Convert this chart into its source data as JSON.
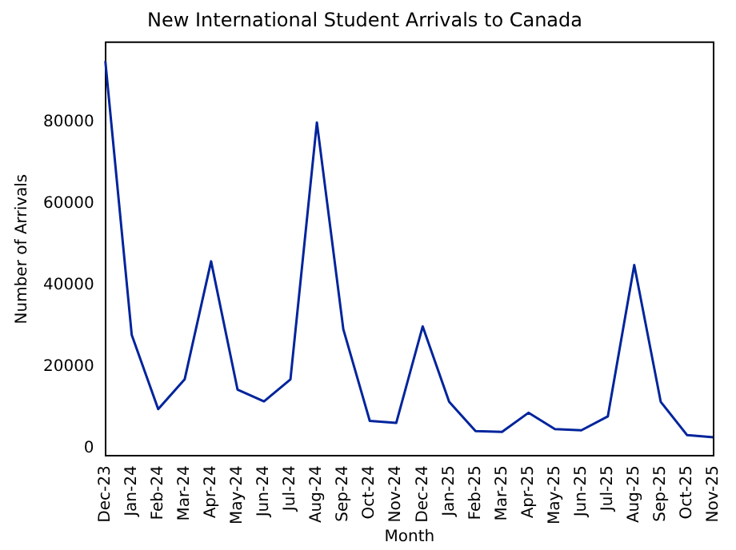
{
  "chart_data": {
    "type": "line",
    "title": "New International Student Arrivals to Canada",
    "xlabel": "Month",
    "ylabel": "Number of Arrivals",
    "categories": [
      "Dec-23",
      "Jan-24",
      "Feb-24",
      "Mar-24",
      "Apr-24",
      "May-24",
      "Jun-24",
      "Jul-24",
      "Aug-24",
      "Sep-24",
      "Oct-24",
      "Nov-24",
      "Dec-24",
      "Jan-25",
      "Feb-25",
      "Mar-25",
      "Apr-25",
      "May-25",
      "Jun-25",
      "Jul-25",
      "Aug-25",
      "Sep-25",
      "Oct-25",
      "Nov-25"
    ],
    "series": [
      {
        "color": "#00249c",
        "values": [
          95100,
          27800,
          9600,
          16900,
          45900,
          14400,
          11500,
          16900,
          80000,
          29200,
          6700,
          6200,
          29900,
          11400,
          4200,
          4000,
          8700,
          4700,
          4400,
          7800,
          45000,
          11400,
          3200,
          2700
        ]
      }
    ],
    "ylim": [
      -1900,
      99700
    ],
    "yticks": [
      0,
      20000,
      40000,
      60000,
      80000
    ],
    "grid": false,
    "legend": false,
    "marker": "none",
    "line_style": "solid"
  }
}
